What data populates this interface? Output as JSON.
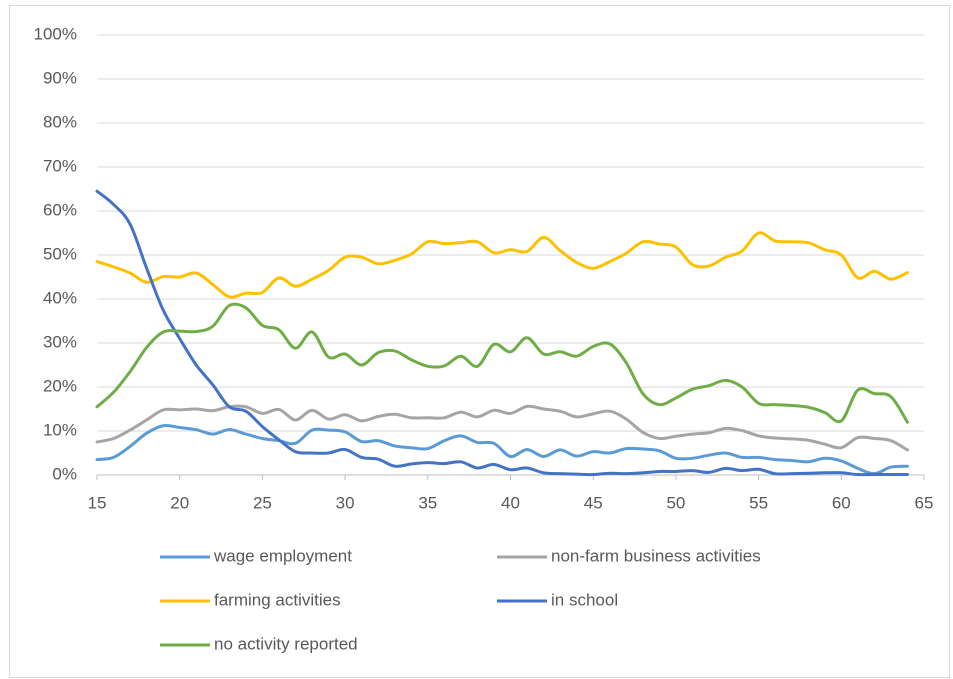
{
  "chart_data": {
    "type": "line",
    "x": [
      15,
      16,
      17,
      18,
      19,
      20,
      21,
      22,
      23,
      24,
      25,
      26,
      27,
      28,
      29,
      30,
      31,
      32,
      33,
      34,
      35,
      36,
      37,
      38,
      39,
      40,
      41,
      42,
      43,
      44,
      45,
      46,
      47,
      48,
      49,
      50,
      51,
      52,
      53,
      54,
      55,
      56,
      57,
      58,
      59,
      60,
      61,
      62,
      63,
      64
    ],
    "xlim": [
      15,
      65
    ],
    "xticks": [
      15,
      20,
      25,
      30,
      35,
      40,
      45,
      50,
      55,
      60,
      65
    ],
    "ylim": [
      0,
      100
    ],
    "yticks": [
      {
        "value": 0,
        "label": "0%"
      },
      {
        "value": 10,
        "label": "10%"
      },
      {
        "value": 20,
        "label": "20%"
      },
      {
        "value": 30,
        "label": "30%"
      },
      {
        "value": 40,
        "label": "40%"
      },
      {
        "value": 50,
        "label": "50%"
      },
      {
        "value": 60,
        "label": "60%"
      },
      {
        "value": 70,
        "label": "70%"
      },
      {
        "value": 80,
        "label": "80%"
      },
      {
        "value": 90,
        "label": "90%"
      },
      {
        "value": 100,
        "label": "100%"
      }
    ],
    "grid": true,
    "legend": "bottom",
    "series": [
      {
        "name": "wage employment",
        "color": "#5b9bd5",
        "values": [
          3.5,
          4,
          6.5,
          9.5,
          11.2,
          10.8,
          10.3,
          9.3,
          10.3,
          9.3,
          8.3,
          7.8,
          7.2,
          10.2,
          10.2,
          9.8,
          7.6,
          7.8,
          6.6,
          6.2,
          6,
          7.8,
          8.9,
          7.4,
          7.2,
          4.2,
          5.8,
          4.2,
          5.7,
          4.3,
          5.3,
          5,
          6,
          5.9,
          5.5,
          3.8,
          3.8,
          4.5,
          5,
          4,
          4,
          3.5,
          3.3,
          3,
          3.8,
          3.2,
          1.5,
          0.3,
          1.8,
          2
        ]
      },
      {
        "name": "non-farm business activities",
        "color": "#a5a5a5",
        "values": [
          7.5,
          8.3,
          10.2,
          12.5,
          14.8,
          14.8,
          15,
          14.6,
          15.5,
          15.5,
          14,
          14.9,
          12.5,
          14.7,
          12.7,
          13.7,
          12.3,
          13.3,
          13.8,
          13,
          13,
          13,
          14.3,
          13.2,
          14.7,
          14,
          15.6,
          15,
          14.5,
          13.2,
          13.9,
          14.5,
          12.7,
          9.7,
          8.3,
          8.8,
          9.3,
          9.6,
          10.6,
          10.1,
          8.9,
          8.4,
          8.2,
          7.9,
          7,
          6.2,
          8.5,
          8.3,
          7.8,
          5.7
        ]
      },
      {
        "name": "farming activities",
        "color": "#ffc000",
        "values": [
          48.5,
          47.3,
          45.9,
          43.8,
          45.1,
          45,
          45.9,
          43.3,
          40.5,
          41.3,
          41.5,
          44.8,
          42.9,
          44.5,
          46.5,
          49.5,
          49.5,
          48,
          48.8,
          50.2,
          53,
          52.6,
          52.8,
          53,
          50.5,
          51.2,
          50.8,
          54,
          51,
          48.3,
          47,
          48.5,
          50.4,
          53,
          52.5,
          51.8,
          47.8,
          47.5,
          49.5,
          50.9,
          55,
          53.2,
          53,
          52.8,
          51.2,
          50,
          44.8,
          46.3,
          44.5,
          46
        ]
      },
      {
        "name": "in school",
        "color": "#4472c4",
        "values": [
          64.5,
          61.5,
          57,
          47,
          37.5,
          31,
          25,
          20.5,
          15.5,
          14.5,
          11,
          8,
          5.3,
          5,
          5,
          5.8,
          4,
          3.6,
          2,
          2.5,
          2.8,
          2.6,
          3,
          1.6,
          2.4,
          1.2,
          1.6,
          0.5,
          0.3,
          0.2,
          0.1,
          0.4,
          0.3,
          0.5,
          0.8,
          0.8,
          1,
          0.6,
          1.5,
          1,
          1.3,
          0.3,
          0.3,
          0.4,
          0.5,
          0.5,
          0.1,
          0.1,
          0.1,
          0.1
        ]
      },
      {
        "name": "no activity reported",
        "color": "#70ad47",
        "values": [
          15.5,
          18.8,
          23.5,
          29,
          32.5,
          32.7,
          32.6,
          33.8,
          38.5,
          38,
          34,
          33,
          28.8,
          32.5,
          26.8,
          27.5,
          25,
          27.8,
          28.2,
          26.2,
          24.7,
          24.8,
          27,
          24.7,
          29.7,
          28,
          31.2,
          27.5,
          28,
          27,
          29.2,
          29.8,
          25.5,
          18.5,
          16,
          17.5,
          19.5,
          20.3,
          21.5,
          20,
          16.3,
          16,
          15.8,
          15.4,
          14.2,
          12.3,
          19.3,
          18.5,
          17.8,
          12
        ]
      }
    ]
  }
}
